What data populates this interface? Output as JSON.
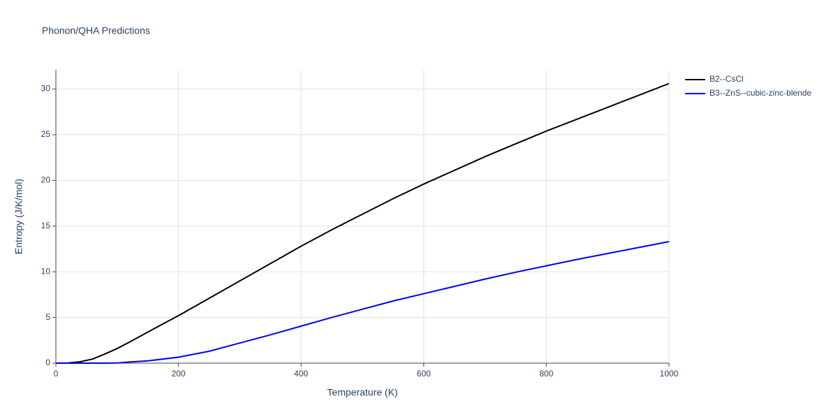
{
  "chart_data": {
    "type": "line",
    "title": "Phonon/QHA Predictions",
    "x_label": "Temperature (K)",
    "y_label": "Entropy (J/K/mol)",
    "x": [
      0,
      20,
      40,
      60,
      80,
      100,
      120,
      150,
      200,
      250,
      300,
      350,
      400,
      450,
      500,
      550,
      600,
      650,
      700,
      750,
      800,
      850,
      900,
      950,
      1000
    ],
    "series": [
      {
        "name": "B2--CsCl",
        "color": "#000000",
        "values": [
          0,
          0.02,
          0.15,
          0.45,
          1.0,
          1.6,
          2.3,
          3.4,
          5.2,
          7.1,
          9.0,
          10.9,
          12.8,
          14.6,
          16.3,
          18.0,
          19.6,
          21.1,
          22.6,
          24.0,
          25.4,
          26.7,
          28.0,
          29.3,
          30.6
        ]
      },
      {
        "name": "B3--ZnS--cubic-zinc-blende",
        "color": "#0000ee",
        "values": [
          0,
          0,
          0,
          0,
          0,
          0.02,
          0.12,
          0.25,
          0.65,
          1.3,
          2.2,
          3.1,
          4.05,
          5.0,
          5.9,
          6.8,
          7.6,
          8.4,
          9.2,
          9.95,
          10.65,
          11.35,
          12.0,
          12.65,
          13.3
        ]
      }
    ],
    "xlim": [
      0,
      1000
    ],
    "ylim": [
      0,
      32.1
    ],
    "xticks": [
      0,
      200,
      400,
      600,
      800,
      1000
    ],
    "yticks": [
      0,
      5,
      10,
      15,
      20,
      25,
      30
    ],
    "grid": true,
    "legend": "top-right"
  }
}
